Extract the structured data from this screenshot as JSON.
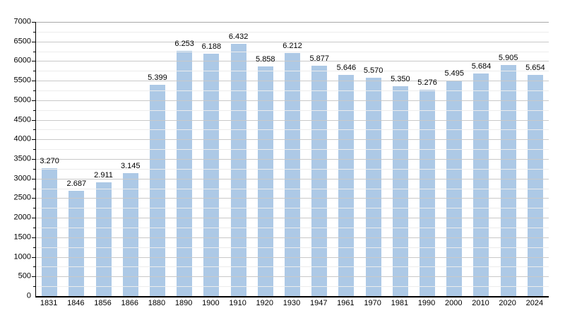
{
  "chart_data": {
    "type": "bar",
    "title": "",
    "xlabel": "",
    "ylabel": "",
    "categories": [
      "1831",
      "1846",
      "1856",
      "1866",
      "1880",
      "1890",
      "1900",
      "1910",
      "1920",
      "1930",
      "1947",
      "1961",
      "1970",
      "1981",
      "1990",
      "2000",
      "2010",
      "2020",
      "2024"
    ],
    "values": [
      3270,
      2687,
      2911,
      3145,
      5399,
      6253,
      6188,
      6432,
      5858,
      6212,
      5877,
      5646,
      5570,
      5350,
      5276,
      5495,
      5684,
      5905,
      5654
    ],
    "value_labels": [
      "3.270",
      "2.687",
      "2.911",
      "3.145",
      "5.399",
      "6.253",
      "6.188",
      "6.432",
      "5.858",
      "6.212",
      "5.877",
      "5.646",
      "5.570",
      "5.350",
      "5.276",
      "5.495",
      "5.684",
      "5.905",
      "5.654"
    ],
    "ylim": [
      0,
      7000
    ],
    "y_major_step": 500,
    "y_minor_step": 250,
    "y_tick_labels": [
      "0",
      "500",
      "1000",
      "1500",
      "2000",
      "2500",
      "3000",
      "3500",
      "4000",
      "4500",
      "5000",
      "5500",
      "6000",
      "6500",
      "7000"
    ],
    "grid": "on",
    "legend": "none",
    "colors": {
      "bar_fill": "#adc9e6",
      "grid_major": "#c9c9c9",
      "grid_minor": "#ececec",
      "grid_top": "#a9a9a9",
      "axis_line": "#000000",
      "text": "#000000",
      "background": "#ffffff"
    }
  }
}
